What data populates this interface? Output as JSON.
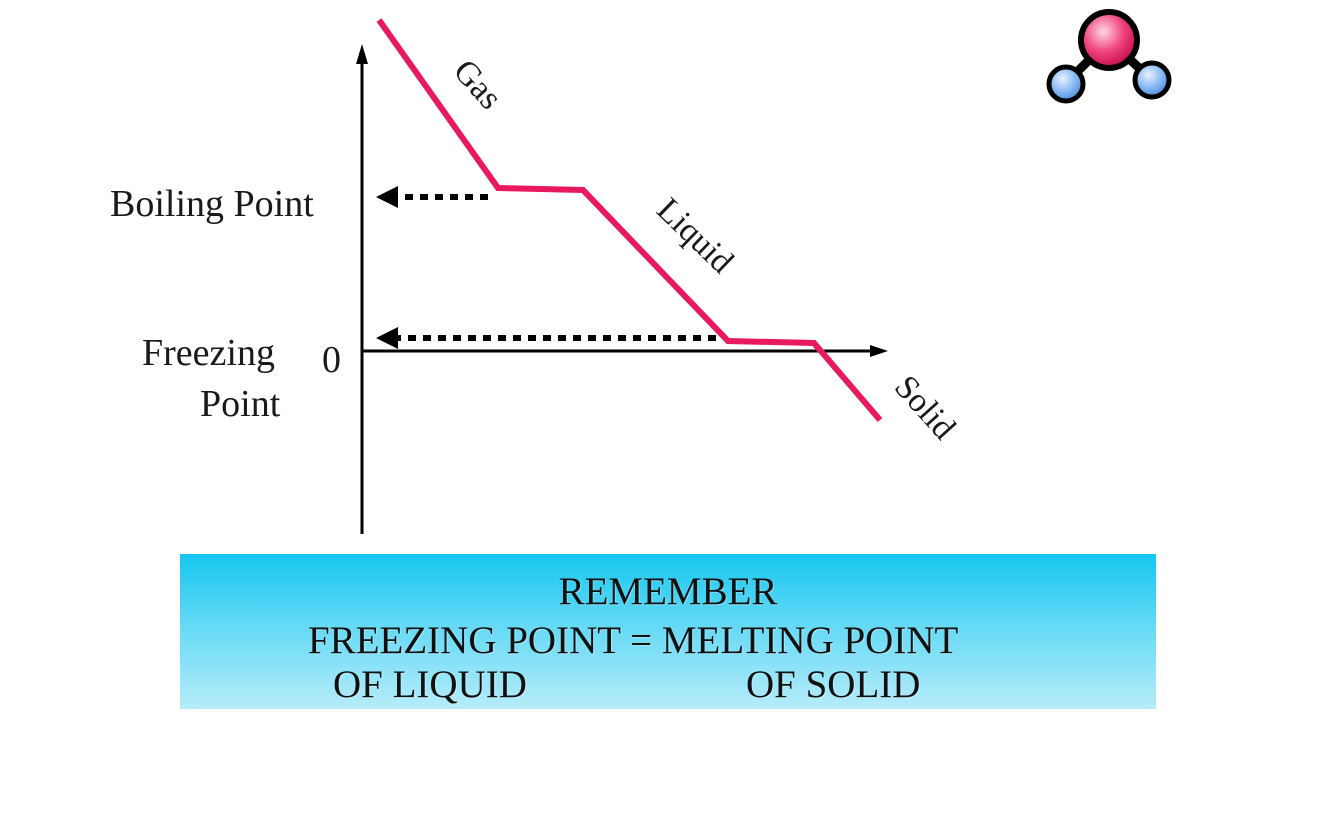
{
  "axis": {
    "origin_label": "0"
  },
  "levels": {
    "boiling_label": "Boiling Point",
    "freezing_label_line1": "Freezing",
    "freezing_label_line2": "Point"
  },
  "phases": {
    "gas": "Gas",
    "liquid": "Liquid",
    "solid": "Solid"
  },
  "colors": {
    "curve": "#e8195e",
    "axis": "#000000",
    "box_top": "#16c6f0",
    "box_bottom": "#b6ecfa",
    "molecule_center": "#e8195e",
    "molecule_side": "#6fa8ee"
  },
  "icons": {
    "logo": "molecule-icon"
  },
  "note": {
    "title": "REMEMBER",
    "line": "FREEZING POINT = MELTING POINT",
    "left": "OF LIQUID",
    "right": "OF SOLID"
  }
}
